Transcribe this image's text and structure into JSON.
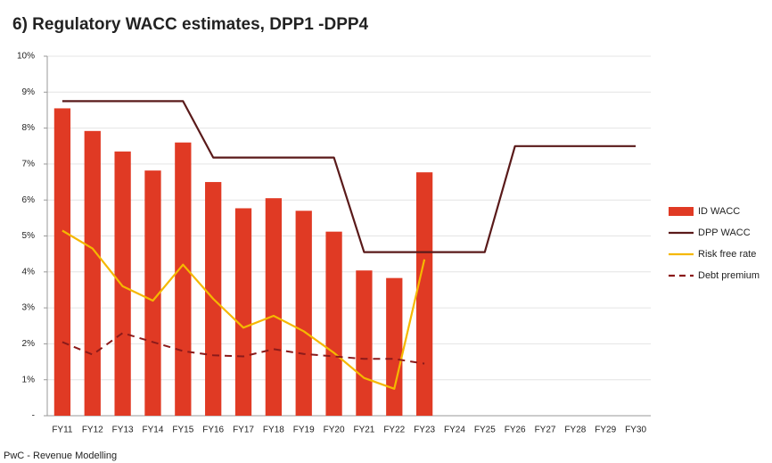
{
  "chart_data": {
    "type": "combo",
    "title": "6) Regulatory WACC estimates, DPP1 -DPP4",
    "footnote": "PwC - Revenue Modelling",
    "categories": [
      "FY11",
      "FY12",
      "FY13",
      "FY14",
      "FY15",
      "FY16",
      "FY17",
      "FY18",
      "FY19",
      "FY20",
      "FY21",
      "FY22",
      "FY23",
      "FY24",
      "FY25",
      "FY26",
      "FY27",
      "FY28",
      "FY29",
      "FY30"
    ],
    "series": [
      {
        "name": "ID WACC",
        "type": "bar",
        "color": "#e03a24",
        "values": [
          8.55,
          7.92,
          7.35,
          6.82,
          7.6,
          6.5,
          5.77,
          6.05,
          5.7,
          5.12,
          4.04,
          3.83,
          6.77,
          null,
          null,
          null,
          null,
          null,
          null,
          null
        ]
      },
      {
        "name": "DPP WACC",
        "type": "line",
        "color": "#5a1a1a",
        "dashed": false,
        "values": [
          8.75,
          8.75,
          8.75,
          8.75,
          8.75,
          7.18,
          7.18,
          7.18,
          7.18,
          7.18,
          4.55,
          4.55,
          4.55,
          4.55,
          4.55,
          7.5,
          7.5,
          7.5,
          7.5,
          7.5
        ]
      },
      {
        "name": "Risk free rate",
        "type": "line",
        "color": "#f5b800",
        "dashed": false,
        "values": [
          5.15,
          4.65,
          3.6,
          3.2,
          4.2,
          3.25,
          2.45,
          2.78,
          2.35,
          1.75,
          1.05,
          0.75,
          4.35,
          null,
          null,
          null,
          null,
          null,
          null,
          null
        ]
      },
      {
        "name": "Debt premium",
        "type": "line",
        "color": "#8b1a1a",
        "dashed": true,
        "values": [
          2.05,
          1.7,
          2.3,
          2.05,
          1.8,
          1.68,
          1.65,
          1.85,
          1.72,
          1.65,
          1.58,
          1.58,
          1.45,
          null,
          null,
          null,
          null,
          null,
          null,
          null
        ]
      }
    ],
    "ylim": [
      0,
      10
    ],
    "yticks": [
      {
        "value": 0,
        "label": "-"
      },
      {
        "value": 1,
        "label": "1%"
      },
      {
        "value": 2,
        "label": "2%"
      },
      {
        "value": 3,
        "label": "3%"
      },
      {
        "value": 4,
        "label": "4%"
      },
      {
        "value": 5,
        "label": "5%"
      },
      {
        "value": 6,
        "label": "6%"
      },
      {
        "value": 7,
        "label": "7%"
      },
      {
        "value": 8,
        "label": "8%"
      },
      {
        "value": 9,
        "label": "9%"
      },
      {
        "value": 10,
        "label": "10%"
      }
    ],
    "grid": true,
    "legend": "right"
  }
}
